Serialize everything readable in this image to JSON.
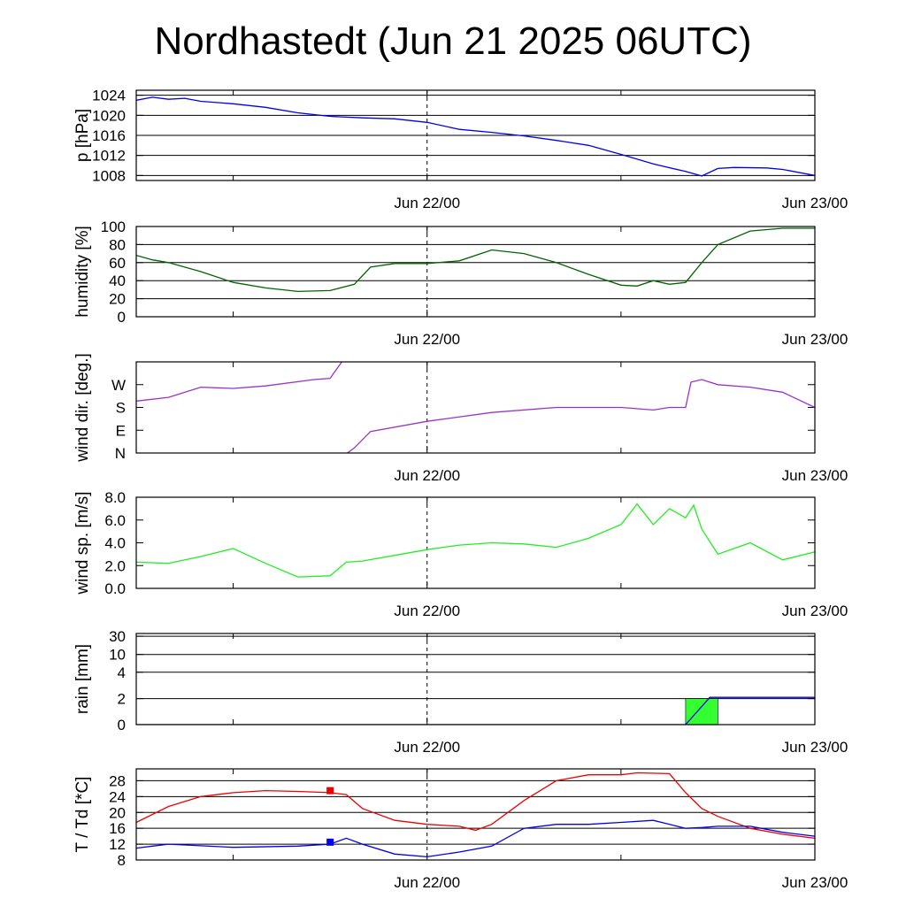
{
  "title": "Nordhastedt (Jun 21 2025 06UTC)",
  "x_axis": {
    "start": "2025-06-21 06:00",
    "end": "2025-06-23 00:00",
    "tick_labels": [
      "Jun 22/00",
      "Jun 23/00"
    ],
    "tick_times": [
      "2025-06-22 00:00",
      "2025-06-23 00:00"
    ],
    "minor_tick_times": [
      "2025-06-21 12:00",
      "2025-06-22 12:00"
    ],
    "dashed_marker": "2025-06-22 00:00"
  },
  "chart_data": [
    {
      "id": "pressure",
      "type": "line",
      "ylabel": "p [hPa]",
      "ylim": [
        1007,
        1025
      ],
      "yticks": [
        1008,
        1012,
        1016,
        1020,
        1024
      ],
      "ytick_labels": [
        "1008",
        "1012",
        "1016",
        "1020",
        "1024"
      ],
      "grid": true,
      "series": [
        {
          "color": "#0000ee",
          "x": [
            "2025-06-21 06:00",
            "2025-06-21 07:00",
            "2025-06-21 08:00",
            "2025-06-21 09:00",
            "2025-06-21 10:00",
            "2025-06-21 12:00",
            "2025-06-21 14:00",
            "2025-06-21 16:00",
            "2025-06-21 18:00",
            "2025-06-21 20:00",
            "2025-06-21 22:00",
            "2025-06-22 00:00",
            "2025-06-22 02:00",
            "2025-06-22 04:00",
            "2025-06-22 06:00",
            "2025-06-22 08:00",
            "2025-06-22 10:00",
            "2025-06-22 12:00",
            "2025-06-22 14:00",
            "2025-06-22 16:00",
            "2025-06-22 17:00",
            "2025-06-22 18:00",
            "2025-06-22 19:00",
            "2025-06-22 21:00",
            "2025-06-22 22:00",
            "2025-06-23 00:00"
          ],
          "y": [
            1023.0,
            1023.6,
            1023.2,
            1023.4,
            1022.8,
            1022.3,
            1021.6,
            1020.5,
            1019.8,
            1019.5,
            1019.3,
            1018.6,
            1017.2,
            1016.6,
            1015.9,
            1015.0,
            1014.0,
            1012.2,
            1010.3,
            1008.8,
            1007.9,
            1009.4,
            1009.6,
            1009.5,
            1009.2,
            1008.0
          ]
        }
      ]
    },
    {
      "id": "humidity",
      "type": "line",
      "ylabel": "humidity [%]",
      "ylim": [
        0,
        100
      ],
      "yticks": [
        0,
        20,
        40,
        60,
        80,
        100
      ],
      "ytick_labels": [
        "0",
        "20",
        "40",
        "60",
        "80",
        "100"
      ],
      "grid": true,
      "series": [
        {
          "color": "#006400",
          "x": [
            "2025-06-21 06:00",
            "2025-06-21 07:00",
            "2025-06-21 08:00",
            "2025-06-21 10:00",
            "2025-06-21 12:00",
            "2025-06-21 14:00",
            "2025-06-21 16:00",
            "2025-06-21 18:00",
            "2025-06-21 19:30",
            "2025-06-21 20:30",
            "2025-06-21 22:00",
            "2025-06-22 00:00",
            "2025-06-22 02:00",
            "2025-06-22 04:00",
            "2025-06-22 06:00",
            "2025-06-22 08:00",
            "2025-06-22 10:00",
            "2025-06-22 12:00",
            "2025-06-22 13:00",
            "2025-06-22 14:00",
            "2025-06-22 15:00",
            "2025-06-22 16:00",
            "2025-06-22 17:00",
            "2025-06-22 18:00",
            "2025-06-22 20:00",
            "2025-06-22 22:00",
            "2025-06-23 00:00"
          ],
          "y": [
            68,
            63,
            60,
            50,
            38,
            32,
            28,
            29,
            36,
            55,
            59,
            59,
            62,
            74,
            70,
            60,
            47,
            35,
            34,
            40,
            36,
            38,
            60,
            80,
            95,
            98,
            98
          ]
        }
      ]
    },
    {
      "id": "wind_direction",
      "type": "line",
      "ylabel": "wind dir. [deg.]",
      "ylim": [
        0,
        360
      ],
      "yticks": [
        0,
        90,
        180,
        270
      ],
      "ytick_labels": [
        "N",
        "E",
        "S",
        "W"
      ],
      "grid": false,
      "series": [
        {
          "color": "#9932cc",
          "x": [
            "2025-06-21 06:00",
            "2025-06-21 08:00",
            "2025-06-21 10:00",
            "2025-06-21 12:00",
            "2025-06-21 14:00",
            "2025-06-21 17:00",
            "2025-06-21 18:00",
            "2025-06-21 18:50"
          ],
          "y": [
            205,
            220,
            260,
            255,
            265,
            290,
            295,
            370
          ]
        },
        {
          "color": "#9932cc",
          "x": [
            "2025-06-21 18:50",
            "2025-06-21 19:30",
            "2025-06-21 20:30",
            "2025-06-22 00:00",
            "2025-06-22 04:00",
            "2025-06-22 08:00",
            "2025-06-22 12:00",
            "2025-06-22 14:00",
            "2025-06-22 15:00",
            "2025-06-22 16:00",
            "2025-06-22 16:20",
            "2025-06-22 17:00",
            "2025-06-22 18:00",
            "2025-06-22 20:00",
            "2025-06-22 22:00",
            "2025-06-23 00:00"
          ],
          "y": [
            -10,
            20,
            85,
            125,
            160,
            180,
            180,
            170,
            180,
            180,
            280,
            290,
            270,
            260,
            240,
            180
          ]
        }
      ]
    },
    {
      "id": "wind_speed",
      "type": "line",
      "ylabel": "wind sp. [m/s]",
      "ylim": [
        0,
        8
      ],
      "yticks": [
        0,
        2,
        4,
        6,
        8
      ],
      "ytick_labels": [
        "0.0",
        "2.0",
        "4.0",
        "6.0",
        "8.0"
      ],
      "grid": false,
      "series": [
        {
          "color": "#22ee22",
          "x": [
            "2025-06-21 06:00",
            "2025-06-21 08:00",
            "2025-06-21 10:00",
            "2025-06-21 12:00",
            "2025-06-21 14:00",
            "2025-06-21 16:00",
            "2025-06-21 18:00",
            "2025-06-21 19:00",
            "2025-06-21 20:00",
            "2025-06-21 22:00",
            "2025-06-22 00:00",
            "2025-06-22 02:00",
            "2025-06-22 04:00",
            "2025-06-22 06:00",
            "2025-06-22 08:00",
            "2025-06-22 10:00",
            "2025-06-22 12:00",
            "2025-06-22 13:00",
            "2025-06-22 14:00",
            "2025-06-22 15:00",
            "2025-06-22 16:00",
            "2025-06-22 16:30",
            "2025-06-22 17:00",
            "2025-06-22 18:00",
            "2025-06-22 20:00",
            "2025-06-22 22:00",
            "2025-06-23 00:00"
          ],
          "y": [
            2.3,
            2.2,
            2.8,
            3.5,
            2.2,
            1.0,
            1.1,
            2.3,
            2.4,
            2.9,
            3.4,
            3.8,
            4.0,
            3.9,
            3.6,
            4.4,
            5.6,
            7.4,
            5.6,
            7.0,
            6.2,
            7.3,
            5.2,
            3.0,
            4.0,
            2.5,
            3.2
          ]
        }
      ]
    },
    {
      "id": "rain",
      "type": "line",
      "ylabel": "rain [mm]",
      "scale": "nonlinear",
      "yticks": [
        0,
        2,
        4,
        10,
        30
      ],
      "ytick_labels": [
        "0",
        "2",
        "4",
        "10",
        "30"
      ],
      "grid": true,
      "series": [
        {
          "color": "#0000ee",
          "x": [
            "2025-06-21 06:00",
            "2025-06-22 16:00",
            "2025-06-22 17:30",
            "2025-06-23 00:00"
          ],
          "y": [
            0,
            0,
            2.1,
            2.1
          ]
        }
      ],
      "bars": [
        {
          "color": "#33ff33",
          "x_start": "2025-06-22 16:00",
          "x_end": "2025-06-22 18:00",
          "value": 2.0
        }
      ]
    },
    {
      "id": "temperature",
      "type": "line",
      "ylabel": "T / Td [*C]",
      "ylim": [
        8,
        31
      ],
      "yticks": [
        8,
        12,
        16,
        20,
        24,
        28
      ],
      "ytick_labels": [
        "8",
        "12",
        "16",
        "20",
        "24",
        "28"
      ],
      "grid": true,
      "series": [
        {
          "color": "#ee0000",
          "x": [
            "2025-06-21 06:00",
            "2025-06-21 08:00",
            "2025-06-21 10:00",
            "2025-06-21 12:00",
            "2025-06-21 14:00",
            "2025-06-21 16:00",
            "2025-06-21 18:00",
            "2025-06-21 19:00",
            "2025-06-21 20:00",
            "2025-06-21 22:00",
            "2025-06-22 00:00",
            "2025-06-22 02:00",
            "2025-06-22 03:00",
            "2025-06-22 04:00",
            "2025-06-22 06:00",
            "2025-06-22 08:00",
            "2025-06-22 10:00",
            "2025-06-22 12:00",
            "2025-06-22 13:00",
            "2025-06-22 15:00",
            "2025-06-22 16:00",
            "2025-06-22 17:00",
            "2025-06-22 18:00",
            "2025-06-22 20:00",
            "2025-06-22 22:00",
            "2025-06-23 00:00"
          ],
          "y": [
            17.5,
            21.5,
            24.0,
            25.0,
            25.5,
            25.3,
            25.0,
            24.5,
            21.0,
            18.0,
            17.0,
            16.5,
            15.5,
            17.0,
            23.0,
            28.0,
            29.5,
            29.5,
            30.0,
            29.8,
            25.0,
            21.0,
            19.0,
            16.0,
            14.5,
            13.5
          ]
        },
        {
          "color": "#0000ee",
          "x": [
            "2025-06-21 06:00",
            "2025-06-21 07:00",
            "2025-06-21 08:00",
            "2025-06-21 12:00",
            "2025-06-21 16:00",
            "2025-06-21 18:00",
            "2025-06-21 19:00",
            "2025-06-21 20:00",
            "2025-06-21 22:00",
            "2025-06-22 00:00",
            "2025-06-22 02:00",
            "2025-06-22 04:00",
            "2025-06-22 06:00",
            "2025-06-22 08:00",
            "2025-06-22 10:00",
            "2025-06-22 12:00",
            "2025-06-22 14:00",
            "2025-06-22 16:00",
            "2025-06-22 17:00",
            "2025-06-22 18:00",
            "2025-06-22 20:00",
            "2025-06-22 22:00",
            "2025-06-23 00:00"
          ],
          "y": [
            11.0,
            11.5,
            12.0,
            11.2,
            11.5,
            12.0,
            13.5,
            12.0,
            9.5,
            8.8,
            10.0,
            11.5,
            16.0,
            17.0,
            17.0,
            17.5,
            18.0,
            16.0,
            16.2,
            16.5,
            16.5,
            15.0,
            14.0
          ]
        }
      ],
      "markers": [
        {
          "color": "#ee0000",
          "x": "2025-06-21 18:00",
          "y": 25.5
        },
        {
          "color": "#0000ee",
          "x": "2025-06-21 18:00",
          "y": 12.5
        }
      ]
    }
  ]
}
